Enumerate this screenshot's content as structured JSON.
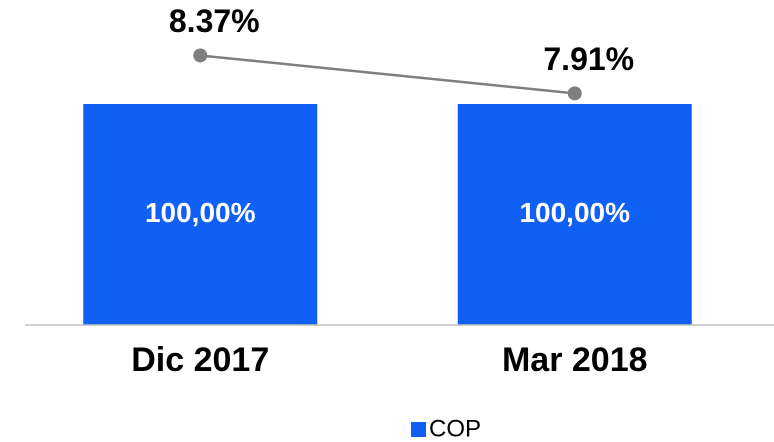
{
  "chart_data": {
    "type": "bar",
    "categories": [
      "Dic 2017",
      "Mar 2018"
    ],
    "ylim": [
      0,
      138
    ],
    "y2lim": [
      5.1,
      8.8
    ],
    "legend": "bottom",
    "series": [
      {
        "name": "COP",
        "color": "#1160f5",
        "values": [
          100,
          100
        ],
        "value_labels": [
          "100,00%",
          "100,00%"
        ]
      },
      {
        "type": "line",
        "axis": "y2",
        "color": "#7f7f7f",
        "values": [
          8.37,
          7.91
        ],
        "value_labels": [
          "8.37%",
          "7.91%"
        ]
      }
    ]
  }
}
